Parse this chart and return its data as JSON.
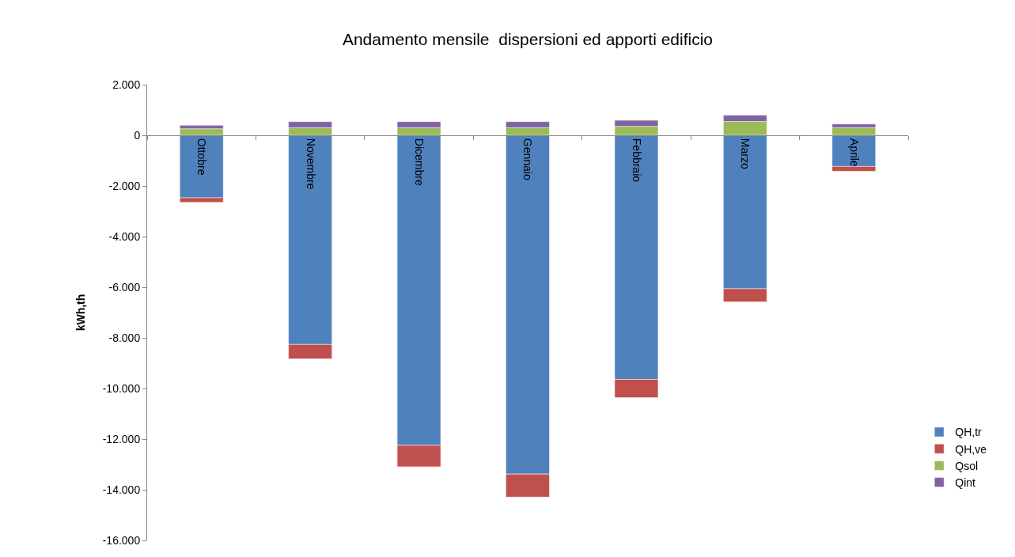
{
  "chart_data": {
    "type": "bar",
    "title": "Andamento mensile  dispersioni ed apporti edificio",
    "ylabel": "kWh,th",
    "categories": [
      "Ottobre",
      "Novembre",
      "Dicembre",
      "Gennaio",
      "Febbraio",
      "Marzo",
      "Aprile"
    ],
    "stacked": true,
    "legend": "right",
    "grid": false,
    "ylim": [
      -16000,
      2000
    ],
    "yticks": [
      {
        "value": 2000,
        "label": "2.000"
      },
      0,
      {
        "value": -2000,
        "label": "-2.000"
      },
      {
        "value": -4000,
        "label": "-4.000"
      },
      {
        "value": -6000,
        "label": "-6.000"
      },
      {
        "value": -8000,
        "label": "-8.000"
      },
      {
        "value": -10000,
        "label": "-10.000"
      },
      {
        "value": -12000,
        "label": "-12.000"
      },
      {
        "value": -14000,
        "label": "-14.000"
      },
      {
        "value": -16000,
        "label": "-16.000"
      }
    ],
    "series": [
      {
        "name": "QH,tr",
        "color": "#4f81bd",
        "values": [
          -2470,
          -8260,
          -12240,
          -13380,
          -9640,
          -6060,
          -1230
        ]
      },
      {
        "name": "QH,ve",
        "color": "#c0504d",
        "values": [
          -180,
          -570,
          -850,
          -910,
          -720,
          -520,
          -190
        ]
      },
      {
        "name": "Qsol",
        "color": "#9bbb59",
        "values": [
          260,
          300,
          300,
          300,
          355,
          545,
          300
        ]
      },
      {
        "name": "Qint",
        "color": "#8064a2",
        "values": [
          135,
          240,
          240,
          240,
          235,
          250,
          145
        ]
      }
    ]
  }
}
